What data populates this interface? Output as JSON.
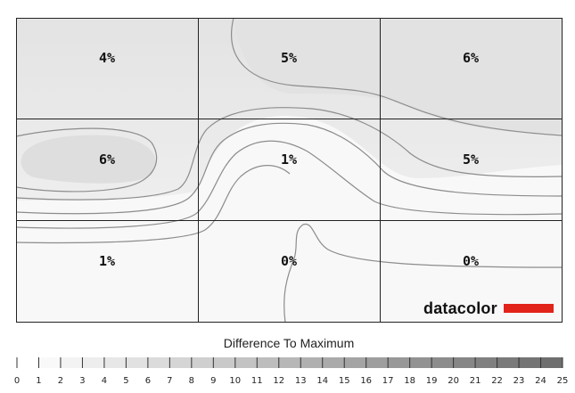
{
  "chart_data": {
    "type": "heatmap",
    "rows": 3,
    "cols": 3,
    "values": [
      [
        "4%",
        "5%",
        "6%"
      ],
      [
        "6%",
        "1%",
        "5%"
      ],
      [
        "1%",
        "0%",
        "0%"
      ]
    ],
    "scale_title": "Difference To Maximum",
    "scale_ticks": [
      0,
      1,
      2,
      3,
      4,
      5,
      6,
      7,
      8,
      9,
      10,
      11,
      12,
      13,
      14,
      15,
      16,
      17,
      18,
      19,
      20,
      21,
      22,
      23,
      24,
      25
    ],
    "scale_range": [
      0,
      25
    ],
    "brand": "datacolor",
    "colors": {
      "brand_bar": "#e2231a",
      "grid_line": "#222222",
      "contour_line": "#8c8c8c",
      "scale_low": "#ffffff",
      "scale_high": "#6e6e6e"
    }
  }
}
